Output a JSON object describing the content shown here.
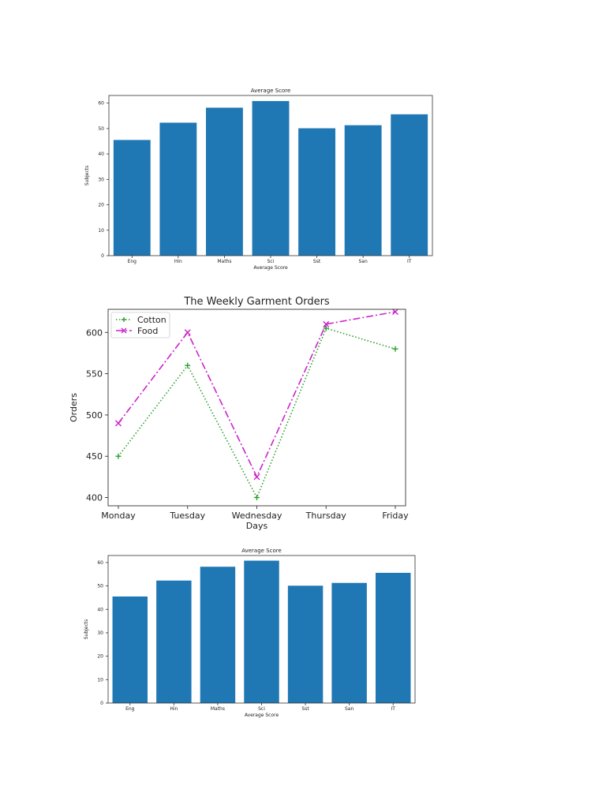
{
  "chart_data": [
    {
      "type": "bar",
      "title": "Average Score",
      "xlabel": "Average Score",
      "ylabel": "Subjects",
      "categories": [
        "Eng",
        "Hin",
        "Maths",
        "Sci",
        "Sst",
        "San",
        "IT"
      ],
      "values": [
        45.5,
        52.3,
        58.2,
        60.8,
        50.1,
        51.3,
        55.6
      ],
      "ylim": [
        0,
        63
      ],
      "yticks": [
        "0",
        "10",
        "20",
        "30",
        "40",
        "50",
        "60"
      ],
      "color": "#1f77b4",
      "grid": false
    },
    {
      "type": "line",
      "title": "The Weekly Garment Orders",
      "xlabel": "Days",
      "ylabel": "Orders",
      "categories": [
        "Monday",
        "Tuesday",
        "Wednesday",
        "Thursday",
        "Friday"
      ],
      "ylim": [
        390,
        628
      ],
      "yticks": [
        "400",
        "450",
        "500",
        "550",
        "600"
      ],
      "legend_position": "top-left",
      "grid": false,
      "series": [
        {
          "name": "Cotton",
          "values": [
            450,
            560,
            400,
            605,
            580
          ],
          "color": "#2ca02c",
          "marker": "plus",
          "linestyle": "dotted"
        },
        {
          "name": "Food",
          "values": [
            490,
            600,
            425,
            610,
            625
          ],
          "color": "#cc22cc",
          "marker": "x",
          "linestyle": "dashdot"
        }
      ]
    },
    {
      "type": "bar",
      "title": "Average Score",
      "xlabel": "Average Score",
      "ylabel": "Subjects",
      "categories": [
        "Eng",
        "Hin",
        "Maths",
        "Sci",
        "Sst",
        "San",
        "IT"
      ],
      "values": [
        45.5,
        52.3,
        58.2,
        60.8,
        50.1,
        51.3,
        55.6
      ],
      "ylim": [
        0,
        63
      ],
      "yticks": [
        "0",
        "10",
        "20",
        "30",
        "40",
        "50",
        "60"
      ],
      "color": "#1f77b4",
      "grid": false
    }
  ]
}
